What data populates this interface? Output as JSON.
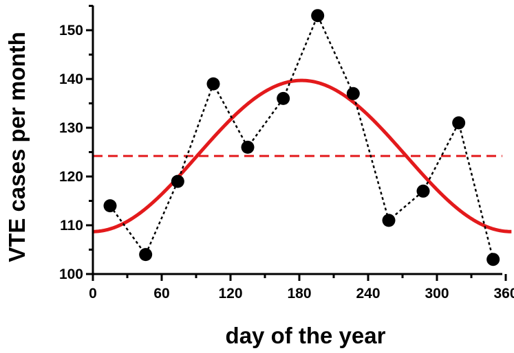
{
  "chart_data": {
    "type": "scatter",
    "xlabel": "day of the year",
    "ylabel": "VTE cases per month",
    "xlim": [
      0,
      365
    ],
    "ylim": [
      100,
      155
    ],
    "x_ticks": [
      0,
      60,
      120,
      180,
      240,
      300,
      360
    ],
    "y_ticks": [
      100,
      110,
      120,
      130,
      140,
      150
    ],
    "grid": false,
    "colors": {
      "observed": "#000000",
      "fit": "#e31a1c",
      "mean": "#e31a1c"
    },
    "series": [
      {
        "style": "points-dotted-line",
        "x": [
          15,
          46,
          74,
          105,
          135,
          166,
          196,
          227,
          258,
          288,
          319,
          349
        ],
        "y": [
          114,
          104,
          119,
          139,
          126,
          136,
          153,
          137,
          111,
          117,
          131,
          103
        ]
      },
      {
        "style": "solid-line",
        "function": "cosinor",
        "mesor": 124.2,
        "amplitude": 15.5,
        "peak_day": 182,
        "period": 365,
        "x_range": [
          0,
          365
        ]
      },
      {
        "style": "dashed-line",
        "y": 124.2
      }
    ]
  }
}
